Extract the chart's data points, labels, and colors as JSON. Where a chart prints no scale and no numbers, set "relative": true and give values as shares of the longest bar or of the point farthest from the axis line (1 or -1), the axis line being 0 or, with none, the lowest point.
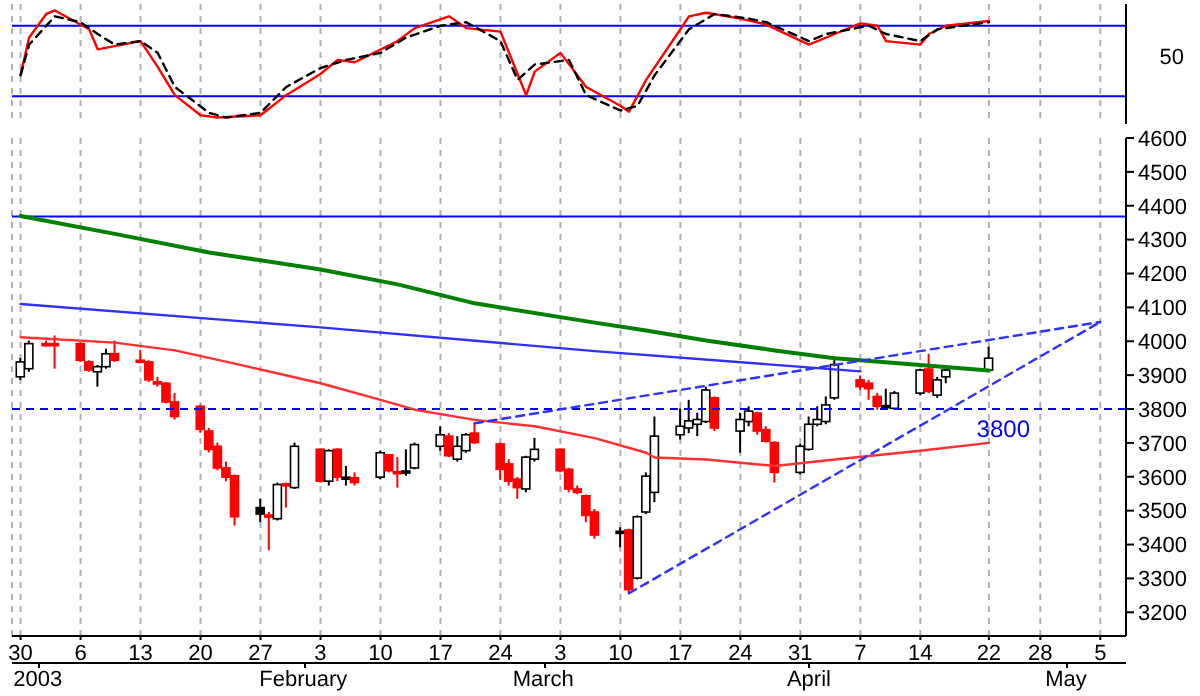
{
  "chart_data": [
    {
      "type": "line",
      "xlim": [
        "2002-12-29",
        "2003-05-08"
      ],
      "xticks": [
        "2002-12-30",
        "2003-01-06",
        "2003-01-13",
        "2003-01-20",
        "2003-01-27",
        "2003-02-03",
        "2003-02-10",
        "2003-02-17",
        "2003-02-24",
        "2003-03-03",
        "2003-03-10",
        "2003-03-17",
        "2003-03-24",
        "2003-03-31",
        "2003-04-07",
        "2003-04-14",
        "2003-04-22",
        "2003-04-28",
        "2003-05-05"
      ],
      "relative": true,
      "annotations": [
        "50"
      ],
      "tick_labels": false,
      "grid": "x",
      "legend": false,
      "marker": "none",
      "ref_lines": [
        {
          "axis": "y",
          "value": 0.857,
          "color": "#0000ff",
          "line_style": "solid"
        },
        {
          "axis": "y",
          "value": 0.198,
          "color": "#0000ff",
          "line_style": "solid"
        }
      ],
      "series": [
        {
          "color": "#ff0000",
          "line_style": "solid",
          "x": [
            "2002-12-30",
            "2002-12-31",
            "2003-01-02",
            "2003-01-03",
            "2003-01-07",
            "2003-01-08",
            "2003-01-13",
            "2003-01-15",
            "2003-01-17",
            "2003-01-20",
            "2003-01-22",
            "2003-01-27",
            "2003-01-30",
            "2003-02-03",
            "2003-02-05",
            "2003-02-07",
            "2003-02-12",
            "2003-02-14",
            "2003-02-18",
            "2003-02-20",
            "2003-02-24",
            "2003-02-27",
            "2003-02-28",
            "2003-03-03",
            "2003-03-06",
            "2003-03-10",
            "2003-03-11",
            "2003-03-13",
            "2003-03-17",
            "2003-03-18",
            "2003-03-20",
            "2003-03-24",
            "2003-03-27",
            "2003-04-01",
            "2003-04-04",
            "2003-04-07",
            "2003-04-09",
            "2003-04-10",
            "2003-04-14",
            "2003-04-15",
            "2003-04-17",
            "2003-04-22"
          ],
          "values": [
            0.396,
            0.747,
            0.967,
            1,
            0.824,
            0.637,
            0.714,
            0.473,
            0.209,
            0.022,
            0,
            0.022,
            0.209,
            0.407,
            0.538,
            0.516,
            0.714,
            0.835,
            0.945,
            0.835,
            0.802,
            0.209,
            0.429,
            0.604,
            0.286,
            0.11,
            0.055,
            0.352,
            0.824,
            0.945,
            0.978,
            0.923,
            0.868,
            0.681,
            0.78,
            0.879,
            0.857,
            0.714,
            0.681,
            0.78,
            0.857,
            0.901
          ]
        },
        {
          "color": "#000000",
          "line_style": "dashed",
          "x": [
            "2002-12-30",
            "2002-12-31",
            "2003-01-03",
            "2003-01-06",
            "2003-01-08",
            "2003-01-10",
            "2003-01-13",
            "2003-01-15",
            "2003-01-17",
            "2003-01-21",
            "2003-01-23",
            "2003-01-27",
            "2003-01-30",
            "2003-02-03",
            "2003-02-06",
            "2003-02-10",
            "2003-02-13",
            "2003-02-17",
            "2003-02-20",
            "2003-02-24",
            "2003-02-26",
            "2003-02-28",
            "2003-03-04",
            "2003-03-06",
            "2003-03-10",
            "2003-03-12",
            "2003-03-14",
            "2003-03-18",
            "2003-03-21",
            "2003-03-25",
            "2003-03-27",
            "2003-04-01",
            "2003-04-03",
            "2003-04-08",
            "2003-04-10",
            "2003-04-14",
            "2003-04-16",
            "2003-04-22"
          ],
          "values": [
            0.396,
            0.681,
            0.945,
            0.89,
            0.78,
            0.681,
            0.714,
            0.604,
            0.286,
            0.044,
            0,
            0.044,
            0.286,
            0.462,
            0.538,
            0.604,
            0.747,
            0.857,
            0.89,
            0.714,
            0.352,
            0.495,
            0.538,
            0.209,
            0.066,
            0.11,
            0.396,
            0.824,
            0.967,
            0.923,
            0.89,
            0.714,
            0.78,
            0.857,
            0.78,
            0.714,
            0.824,
            0.89
          ]
        }
      ]
    },
    {
      "type": "candlestick",
      "xlim": [
        "2002-12-29",
        "2003-05-08"
      ],
      "xticks": [
        {
          "value": "2002-12-30",
          "label": "30"
        },
        {
          "value": "2003-01-06",
          "label": "6"
        },
        {
          "value": "2003-01-13",
          "label": "13"
        },
        {
          "value": "2003-01-20",
          "label": "20"
        },
        {
          "value": "2003-01-27",
          "label": "27"
        },
        {
          "value": "2003-02-03",
          "label": "3"
        },
        {
          "value": "2003-02-10",
          "label": "10"
        },
        {
          "value": "2003-02-17",
          "label": "17"
        },
        {
          "value": "2003-02-24",
          "label": "24"
        },
        {
          "value": "2003-03-03",
          "label": "3"
        },
        {
          "value": "2003-03-10",
          "label": "10"
        },
        {
          "value": "2003-03-17",
          "label": "17"
        },
        {
          "value": "2003-03-24",
          "label": "24"
        },
        {
          "value": "2003-03-31",
          "label": "31"
        },
        {
          "value": "2003-04-07",
          "label": "7"
        },
        {
          "value": "2003-04-14",
          "label": "14"
        },
        {
          "value": "2003-04-22",
          "label": "22"
        },
        {
          "value": "2003-04-28",
          "label": "28"
        },
        {
          "value": "2003-05-05",
          "label": "5"
        }
      ],
      "x2lim": [
        "2002-12-29",
        "2003-05-08"
      ],
      "x2ticks": [
        {
          "value": "2003-01-01",
          "label": "2003"
        },
        {
          "value": "2003-02-01",
          "label": "February"
        },
        {
          "value": "2003-03-01",
          "label": "March"
        },
        {
          "value": "2003-04-01",
          "label": "April"
        },
        {
          "value": "2003-05-01",
          "label": "May"
        }
      ],
      "ylim": [
        3130,
        4600
      ],
      "yticks": [
        3200,
        3300,
        3400,
        3500,
        3600,
        3700,
        3800,
        3900,
        4000,
        4100,
        4200,
        4300,
        4400,
        4500,
        4600
      ],
      "grid": "x",
      "legend": false,
      "marker": "none",
      "ref_lines": [
        {
          "axis": "y",
          "value": 4368,
          "color": "#0000ff",
          "line_style": "solid"
        },
        {
          "axis": "y",
          "value": 3800,
          "label": "3800",
          "color": "#0000ff",
          "line_style": "dashed"
        }
      ],
      "x": [
        "2002-12-30",
        "2002-12-31",
        "2003-01-02",
        "2003-01-03",
        "2003-01-06",
        "2003-01-07",
        "2003-01-08",
        "2003-01-09",
        "2003-01-10",
        "2003-01-13",
        "2003-01-14",
        "2003-01-15",
        "2003-01-16",
        "2003-01-17",
        "2003-01-20",
        "2003-01-21",
        "2003-01-22",
        "2003-01-23",
        "2003-01-24",
        "2003-01-27",
        "2003-01-28",
        "2003-01-29",
        "2003-01-30",
        "2003-01-31",
        "2003-02-03",
        "2003-02-04",
        "2003-02-05",
        "2003-02-06",
        "2003-02-07",
        "2003-02-10",
        "2003-02-11",
        "2003-02-12",
        "2003-02-13",
        "2003-02-14",
        "2003-02-17",
        "2003-02-18",
        "2003-02-19",
        "2003-02-20",
        "2003-02-21",
        "2003-02-24",
        "2003-02-25",
        "2003-02-26",
        "2003-02-27",
        "2003-02-28",
        "2003-03-03",
        "2003-03-04",
        "2003-03-05",
        "2003-03-06",
        "2003-03-07",
        "2003-03-10",
        "2003-03-11",
        "2003-03-12",
        "2003-03-13",
        "2003-03-14",
        "2003-03-17",
        "2003-03-18",
        "2003-03-19",
        "2003-03-20",
        "2003-03-21",
        "2003-03-24",
        "2003-03-25",
        "2003-03-26",
        "2003-03-27",
        "2003-03-28",
        "2003-03-31",
        "2003-04-01",
        "2003-04-02",
        "2003-04-03",
        "2003-04-04",
        "2003-04-07",
        "2003-04-08",
        "2003-04-09",
        "2003-04-10",
        "2003-04-11",
        "2003-04-14",
        "2003-04-15",
        "2003-04-16",
        "2003-04-17",
        "2003-04-22"
      ],
      "ohlc": [
        [
          3895,
          3951,
          3886,
          3939
        ],
        [
          3919,
          4002,
          3910,
          3993
        ],
        [
          3993,
          4002,
          3984,
          3989
        ],
        [
          3993,
          4017,
          3919,
          3989
        ],
        [
          3993,
          3997,
          3939,
          3944
        ],
        [
          3939,
          3944,
          3910,
          3915
        ],
        [
          3910,
          3930,
          3866,
          3925
        ],
        [
          3925,
          3978,
          3919,
          3963
        ],
        [
          3963,
          4002,
          3939,
          3944
        ],
        [
          3944,
          3974,
          3935,
          3940
        ],
        [
          3939,
          3944,
          3880,
          3886
        ],
        [
          3880,
          3895,
          3866,
          3878
        ],
        [
          3876,
          3880,
          3817,
          3821
        ],
        [
          3821,
          3847,
          3769,
          3778
        ],
        [
          3808,
          3813,
          3730,
          3740
        ],
        [
          3735,
          3744,
          3672,
          3681
        ],
        [
          3690,
          3701,
          3619,
          3626
        ],
        [
          3626,
          3645,
          3587,
          3599
        ],
        [
          3603,
          3607,
          3456,
          3482
        ],
        [
          3509,
          3535,
          3466,
          3490
        ],
        [
          3487,
          3496,
          3383,
          3484
        ],
        [
          3476,
          3583,
          3471,
          3577
        ],
        [
          3579,
          3583,
          3509,
          3576
        ],
        [
          3568,
          3701,
          3564,
          3690
        ],
        [
          3681,
          3684,
          3583,
          3587
        ],
        [
          3587,
          3681,
          3574,
          3677
        ],
        [
          3681,
          3684,
          3587,
          3599
        ],
        [
          3599,
          3632,
          3574,
          3597
        ],
        [
          3597,
          3613,
          3574,
          3583
        ],
        [
          3599,
          3677,
          3593,
          3671
        ],
        [
          3665,
          3665,
          3613,
          3618
        ],
        [
          3615,
          3658,
          3568,
          3611
        ],
        [
          3617,
          3681,
          3603,
          3615
        ],
        [
          3626,
          3701,
          3622,
          3695
        ],
        [
          3690,
          3749,
          3677,
          3724
        ],
        [
          3720,
          3729,
          3658,
          3662
        ],
        [
          3652,
          3720,
          3645,
          3690
        ],
        [
          3677,
          3729,
          3671,
          3724
        ],
        [
          3729,
          3759,
          3697,
          3701
        ],
        [
          3697,
          3701,
          3591,
          3622
        ],
        [
          3638,
          3652,
          3574,
          3587
        ],
        [
          3593,
          3599,
          3535,
          3568
        ],
        [
          3564,
          3662,
          3554,
          3658
        ],
        [
          3652,
          3715,
          3645,
          3681
        ],
        [
          3681,
          3684,
          3613,
          3618
        ],
        [
          3622,
          3626,
          3554,
          3564
        ],
        [
          3564,
          3574,
          3548,
          3554
        ],
        [
          3544,
          3548,
          3466,
          3486
        ],
        [
          3496,
          3505,
          3417,
          3428
        ],
        [
          3439,
          3451,
          3392,
          3433
        ],
        [
          3443,
          3447,
          3256,
          3267
        ],
        [
          3301,
          3486,
          3297,
          3482
        ],
        [
          3496,
          3613,
          3490,
          3602
        ],
        [
          3554,
          3778,
          3525,
          3720
        ],
        [
          3724,
          3802,
          3710,
          3749
        ],
        [
          3744,
          3827,
          3729,
          3765
        ],
        [
          3755,
          3789,
          3720,
          3769
        ],
        [
          3763,
          3866,
          3759,
          3856
        ],
        [
          3833,
          3837,
          3735,
          3744
        ],
        [
          3735,
          3789,
          3671,
          3769
        ],
        [
          3763,
          3808,
          3749,
          3794
        ],
        [
          3788,
          3792,
          3724,
          3735
        ],
        [
          3739,
          3749,
          3701,
          3705
        ],
        [
          3701,
          3705,
          3583,
          3613
        ],
        [
          3613,
          3697,
          3607,
          3690
        ],
        [
          3681,
          3778,
          3677,
          3755
        ],
        [
          3755,
          3808,
          3749,
          3769
        ],
        [
          3763,
          3837,
          3755,
          3812
        ],
        [
          3833,
          3954,
          3827,
          3931
        ],
        [
          3886,
          3899,
          3856,
          3866
        ],
        [
          3876,
          3886,
          3827,
          3860
        ],
        [
          3837,
          3847,
          3798,
          3808
        ],
        [
          3810,
          3860,
          3798,
          3808
        ],
        [
          3802,
          3853,
          3798,
          3847
        ],
        [
          3847,
          3918,
          3841,
          3915
        ],
        [
          3918,
          3963,
          3847,
          3852
        ],
        [
          3841,
          3895,
          3833,
          3886
        ],
        [
          3895,
          3925,
          3876,
          3915
        ],
        [
          3915,
          3984,
          3909,
          3950
        ]
      ],
      "colors": [
        "#ffffff",
        "#ffffff",
        "#ff0000",
        "#ff0000",
        "#ff0000",
        "#ff0000",
        "#ffffff",
        "#ffffff",
        "#ff0000",
        "#ff0000",
        "#ff0000",
        "#ff0000",
        "#ff0000",
        "#ff0000",
        "#ff0000",
        "#ff0000",
        "#ff0000",
        "#ff0000",
        "#ff0000",
        "#000000",
        "#ff0000",
        "#ffffff",
        "#ff0000",
        "#ffffff",
        "#ff0000",
        "#ffffff",
        "#ff0000",
        "#000000",
        "#ff0000",
        "#ffffff",
        "#ff0000",
        "#ff0000",
        "#000000",
        "#ffffff",
        "#ffffff",
        "#ff0000",
        "#ffffff",
        "#ffffff",
        "#ff0000",
        "#ff0000",
        "#ff0000",
        "#ff0000",
        "#ffffff",
        "#ffffff",
        "#ff0000",
        "#ff0000",
        "#ff0000",
        "#ff0000",
        "#ff0000",
        "#000000",
        "#ff0000",
        "#ffffff",
        "#ffffff",
        "#ffffff",
        "#ffffff",
        "#ffffff",
        "#ffffff",
        "#ffffff",
        "#ff0000",
        "#ffffff",
        "#ffffff",
        "#ff0000",
        "#ff0000",
        "#ff0000",
        "#ffffff",
        "#ffffff",
        "#ffffff",
        "#ffffff",
        "#ffffff",
        "#ff0000",
        "#ff0000",
        "#ff0000",
        "#000000",
        "#ffffff",
        "#ffffff",
        "#ff0000",
        "#ffffff",
        "#ffffff",
        "#ffffff"
      ],
      "series": [
        {
          "type": "line",
          "color": "#ff3030",
          "line_style": "solid",
          "x": [
            "2002-12-30",
            "2003-01-10",
            "2003-01-17",
            "2003-01-24",
            "2003-02-03",
            "2003-02-10",
            "2003-02-14",
            "2003-02-21",
            "2003-02-28",
            "2003-03-07",
            "2003-03-13",
            "2003-03-14",
            "2003-03-20",
            "2003-03-28",
            "2003-04-04",
            "2003-04-14",
            "2003-04-22"
          ],
          "values": [
            4012,
            3996,
            3973,
            3934,
            3876,
            3827,
            3798,
            3768,
            3749,
            3714,
            3671,
            3657,
            3651,
            3632,
            3651,
            3677,
            3700
          ]
        },
        {
          "type": "line",
          "color": "#3030ff",
          "line_style": "solid",
          "x": [
            "2002-12-30",
            "2003-02-03",
            "2003-03-07",
            "2003-04-07"
          ],
          "values": [
            4110,
            4041,
            3971,
            3911
          ]
        },
        {
          "type": "line",
          "color": "#008000",
          "line_style": "solid",
          "x": [
            "2002-12-30",
            "2003-01-10",
            "2003-01-21",
            "2003-02-03",
            "2003-02-12",
            "2003-02-21",
            "2003-03-07",
            "2003-03-13",
            "2003-03-20",
            "2003-03-28",
            "2003-04-04",
            "2003-04-14",
            "2003-04-22"
          ],
          "values": [
            4370,
            4317,
            4262,
            4212,
            4168,
            4112,
            4055,
            4032,
            4002,
            3973,
            3950,
            3930,
            3914
          ]
        },
        {
          "type": "line",
          "color": "#3030ff",
          "line_style": "dashed",
          "x": [
            "2003-02-21",
            "2003-05-05"
          ],
          "values": [
            3758,
            4057
          ]
        },
        {
          "type": "line",
          "color": "#3030ff",
          "line_style": "dashed",
          "x": [
            "2003-03-11",
            "2003-05-05"
          ],
          "values": [
            3256,
            4057
          ]
        }
      ]
    }
  ]
}
